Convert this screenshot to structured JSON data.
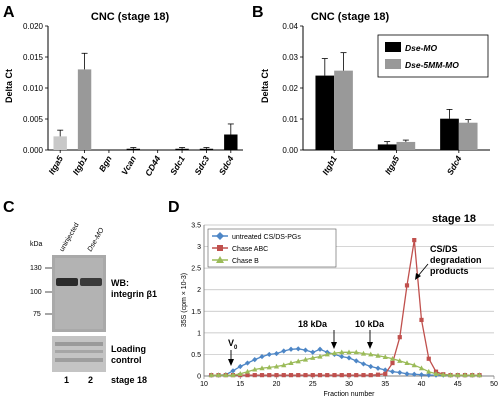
{
  "panels": {
    "A": {
      "label": "A"
    },
    "B": {
      "label": "B"
    },
    "C": {
      "label": "C",
      "lanes": [
        "uninjected",
        "Dse-MO"
      ],
      "kda_label": "kDa",
      "mw_markers": [
        "130",
        "100",
        "75"
      ],
      "wb_label": "WB:",
      "wb_target": "integrin β1",
      "loading_label_1": "Loading",
      "loading_label_2": "control",
      "lane_numbers": [
        "1",
        "2"
      ],
      "stage": "stage 18"
    },
    "D": {
      "label": "D",
      "stage": "stage 18",
      "annotations": {
        "cs_ds_1": "CS/DS",
        "cs_ds_2": "degradation",
        "cs_ds_3": "products",
        "kda18": "18 kDa",
        "kda10": "10 kDa",
        "v0": "V",
        "v0_sub": "0"
      }
    }
  },
  "chart_data": [
    {
      "type": "bar",
      "title": "CNC (stage 18)",
      "ylabel": "Delta Ct",
      "categories": [
        "Itga5",
        "Itgb1",
        "Bgn",
        "Vcan",
        "CD44",
        "Sdc1",
        "Sdc3",
        "Sdc4"
      ],
      "values": [
        0.0022,
        0.013,
        0.0,
        0.0002,
        0.0,
        0.0002,
        0.0002,
        0.0025
      ],
      "errors": [
        0.001,
        0.0026,
        0.0,
        0.0002,
        0.0,
        0.0002,
        0.0002,
        0.0017
      ],
      "colors": [
        "#c8c8c8",
        "#999999",
        "#000000",
        "#000000",
        "#000000",
        "#000000",
        "#000000",
        "#000000"
      ],
      "ylim": [
        0,
        0.02
      ],
      "yticks": [
        "0.000",
        "0.005",
        "0.010",
        "0.015",
        "0.020"
      ]
    },
    {
      "type": "bar",
      "title": "CNC (stage 18)",
      "ylabel": "Delta Ct",
      "categories": [
        "Itgb1",
        "Itga5",
        "Sdc4"
      ],
      "series": [
        {
          "name": "Dse-MO",
          "values": [
            0.024,
            0.0018,
            0.0101
          ],
          "errors": [
            0.0055,
            0.0009,
            0.003
          ],
          "color": "#000000"
        },
        {
          "name": "Dse-5MM-MO",
          "values": [
            0.0256,
            0.0026,
            0.0088
          ],
          "errors": [
            0.0058,
            0.0006,
            0.001
          ],
          "color": "#999999"
        }
      ],
      "ylim": [
        0,
        0.04
      ],
      "yticks": [
        "0.00",
        "0.01",
        "0.02",
        "0.03",
        "0.04"
      ]
    },
    {
      "type": "line",
      "xlabel": "Fraction number",
      "ylabel": "35S (cpm × 10-3)",
      "xlim": [
        10,
        50
      ],
      "ylim": [
        0,
        3.5
      ],
      "xticks": [
        "10",
        "15",
        "20",
        "25",
        "30",
        "35",
        "40",
        "45",
        "50"
      ],
      "yticks": [
        "0",
        "0.5",
        "1",
        "1.5",
        "2",
        "2.5",
        "3",
        "3.5"
      ],
      "series": [
        {
          "name": "untreated CS/DS-PGs",
          "color": "#4d86c6",
          "marker": "diamond",
          "x": [
            11,
            12,
            13,
            14,
            15,
            16,
            17,
            18,
            19,
            20,
            21,
            22,
            23,
            24,
            25,
            26,
            27,
            28,
            29,
            30,
            31,
            32,
            33,
            34,
            35,
            36,
            37,
            38,
            39,
            40,
            41,
            42,
            43,
            44,
            45,
            46,
            47,
            48
          ],
          "y": [
            0.02,
            0.02,
            0.03,
            0.12,
            0.22,
            0.3,
            0.38,
            0.45,
            0.5,
            0.52,
            0.58,
            0.62,
            0.63,
            0.6,
            0.55,
            0.62,
            0.55,
            0.5,
            0.45,
            0.42,
            0.35,
            0.28,
            0.22,
            0.18,
            0.14,
            0.1,
            0.08,
            0.05,
            0.04,
            0.03,
            0.02,
            0.02,
            0.02,
            0.02,
            0.02,
            0.02,
            0.02,
            0.02
          ]
        },
        {
          "name": "Chase ABC",
          "color": "#c0504d",
          "marker": "square",
          "x": [
            11,
            12,
            13,
            14,
            15,
            16,
            17,
            18,
            19,
            20,
            21,
            22,
            23,
            24,
            25,
            26,
            27,
            28,
            29,
            30,
            31,
            32,
            33,
            34,
            35,
            36,
            37,
            38,
            39,
            40,
            41,
            42,
            43,
            44,
            45,
            46,
            47,
            48
          ],
          "y": [
            0.02,
            0.02,
            0.02,
            0.02,
            0.02,
            0.02,
            0.02,
            0.02,
            0.02,
            0.02,
            0.02,
            0.02,
            0.02,
            0.02,
            0.02,
            0.02,
            0.02,
            0.02,
            0.02,
            0.02,
            0.02,
            0.02,
            0.02,
            0.03,
            0.05,
            0.3,
            0.9,
            2.1,
            3.15,
            1.3,
            0.4,
            0.1,
            0.04,
            0.02,
            0.02,
            0.02,
            0.02,
            0.02
          ]
        },
        {
          "name": "Chase B",
          "color": "#9bbb59",
          "marker": "triangle",
          "x": [
            11,
            12,
            13,
            14,
            15,
            16,
            17,
            18,
            19,
            20,
            21,
            22,
            23,
            24,
            25,
            26,
            27,
            28,
            29,
            30,
            31,
            32,
            33,
            34,
            35,
            36,
            37,
            38,
            39,
            40,
            41,
            42,
            43,
            44,
            45,
            46,
            47,
            48
          ],
          "y": [
            0.02,
            0.02,
            0.02,
            0.02,
            0.05,
            0.1,
            0.15,
            0.18,
            0.2,
            0.22,
            0.25,
            0.3,
            0.34,
            0.38,
            0.42,
            0.45,
            0.5,
            0.53,
            0.55,
            0.55,
            0.55,
            0.52,
            0.5,
            0.47,
            0.44,
            0.4,
            0.35,
            0.3,
            0.25,
            0.18,
            0.1,
            0.05,
            0.03,
            0.02,
            0.02,
            0.02,
            0.02,
            0.02
          ]
        }
      ]
    }
  ]
}
